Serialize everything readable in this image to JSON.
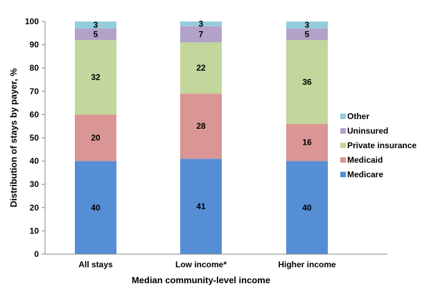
{
  "chart_data": {
    "type": "bar",
    "stacked": true,
    "title": "",
    "xlabel": "Median community-level income",
    "ylabel": "Distribution of stays by payer, %",
    "ylim": [
      0,
      100
    ],
    "yticks": [
      0,
      10,
      20,
      30,
      40,
      50,
      60,
      70,
      80,
      90,
      100
    ],
    "grid": false,
    "legend_position": "right",
    "categories": [
      "All stays",
      "Low income*",
      "Higher income"
    ],
    "series": [
      {
        "name": "Medicare",
        "color": "#558ED5",
        "values": [
          40,
          41,
          40
        ]
      },
      {
        "name": "Medicaid",
        "color": "#D99694",
        "values": [
          20,
          28,
          16
        ]
      },
      {
        "name": "Private insurance",
        "color": "#C3D69B",
        "values": [
          32,
          22,
          36
        ]
      },
      {
        "name": "Uninsured",
        "color": "#B3A2C7",
        "values": [
          5,
          7,
          5
        ]
      },
      {
        "name": "Other",
        "color": "#93CDDD",
        "values": [
          3,
          3,
          3
        ]
      }
    ]
  }
}
